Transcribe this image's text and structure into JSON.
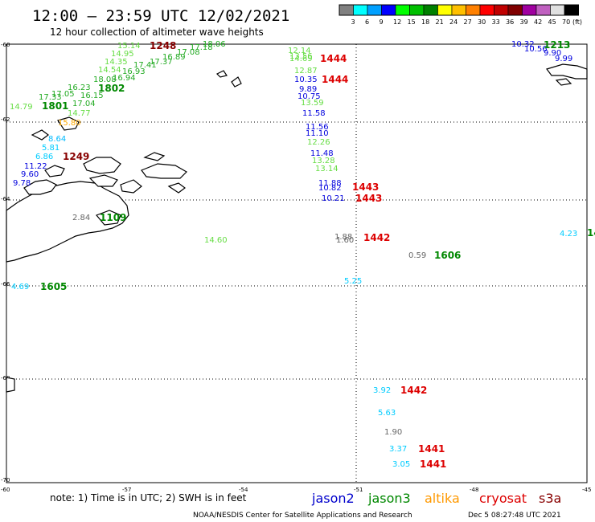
{
  "header": {
    "title": "12:00 – 23:59 UTC 12/02/2021",
    "subtitle": "12 hour collection of altimeter wave heights"
  },
  "legend": {
    "unit": "(ft)",
    "colors": [
      "#808080",
      "#00ffff",
      "#00a0ff",
      "#0000ff",
      "#00ff00",
      "#00c000",
      "#008000",
      "#ffff00",
      "#ffc000",
      "#ff8000",
      "#ff0000",
      "#c00000",
      "#800000",
      "#a000a0",
      "#c060c0",
      "#e0e0e0",
      "#000000"
    ],
    "values": [
      "3",
      "6",
      "9",
      "12",
      "15",
      "18",
      "21",
      "24",
      "27",
      "30",
      "33",
      "36",
      "39",
      "42",
      "45",
      "70"
    ]
  },
  "axes": {
    "lon_labels": [
      "-60",
      "-57",
      "-54",
      "-51",
      "-48",
      "-45"
    ],
    "lat_labels": [
      "-60",
      "-62",
      "-64",
      "-66",
      "-68",
      "-70"
    ]
  },
  "observations": [
    {
      "text": "15.14",
      "color": "#66dd44"
    },
    {
      "text": "14.95",
      "color": "#66dd44"
    },
    {
      "text": "14.35",
      "color": "#66dd44"
    },
    {
      "text": "14.54",
      "color": "#66dd44"
    },
    {
      "text": "16.94",
      "color": "#22aa22"
    },
    {
      "text": "16.93",
      "color": "#22aa22"
    },
    {
      "text": "17.41",
      "color": "#22aa22"
    },
    {
      "text": "17.37",
      "color": "#22aa22"
    },
    {
      "text": "16.89",
      "color": "#22aa22"
    },
    {
      "text": "17.08",
      "color": "#22aa22"
    },
    {
      "text": "17.18",
      "color": "#22aa22"
    },
    {
      "text": "18.06",
      "color": "#22aa22"
    },
    {
      "text": "18.08",
      "color": "#22aa22"
    },
    {
      "text": "17.33",
      "color": "#22aa22"
    },
    {
      "text": "16.15",
      "color": "#22aa22"
    },
    {
      "text": "17.04",
      "color": "#22aa22"
    },
    {
      "text": "17.05",
      "color": "#22aa22"
    },
    {
      "text": "16.23",
      "color": "#22aa22"
    },
    {
      "text": "14.79",
      "color": "#66dd44"
    },
    {
      "text": "14.77",
      "color": "#66dd44"
    },
    {
      "text": "15.80",
      "color": "#ffaa00"
    },
    {
      "text": "8.64",
      "color": "#00bbff"
    },
    {
      "text": "5.81",
      "color": "#00ccff"
    },
    {
      "text": "6.86",
      "color": "#00ccff"
    },
    {
      "text": "11.22",
      "color": "#0000dd"
    },
    {
      "text": "9.60",
      "color": "#0000dd"
    },
    {
      "text": "9.78",
      "color": "#0000dd"
    },
    {
      "text": "12.14",
      "color": "#66dd44"
    },
    {
      "text": "13.56",
      "color": "#66dd44"
    },
    {
      "text": "14.69",
      "color": "#66dd44"
    },
    {
      "text": "12.87",
      "color": "#66dd44"
    },
    {
      "text": "10.35",
      "color": "#0000dd"
    },
    {
      "text": "9.89",
      "color": "#0000dd"
    },
    {
      "text": "10.75",
      "color": "#0000dd"
    },
    {
      "text": "13.59",
      "color": "#66dd44"
    },
    {
      "text": "11.58",
      "color": "#0000dd"
    },
    {
      "text": "11.56",
      "color": "#0000dd"
    },
    {
      "text": "11.10",
      "color": "#0000dd"
    },
    {
      "text": "12.26",
      "color": "#66dd44"
    },
    {
      "text": "11.48",
      "color": "#0000dd"
    },
    {
      "text": "13.28",
      "color": "#66dd44"
    },
    {
      "text": "13.14",
      "color": "#66dd44"
    },
    {
      "text": "11.88",
      "color": "#0000dd"
    },
    {
      "text": "10.82",
      "color": "#0000dd"
    },
    {
      "text": "10.21",
      "color": "#0000dd"
    },
    {
      "text": "1.88",
      "color": "#666666"
    },
    {
      "text": "1.60",
      "color": "#666666"
    },
    {
      "text": "0.59",
      "color": "#666666"
    },
    {
      "text": "5.25",
      "color": "#00ccff"
    },
    {
      "text": "14.60",
      "color": "#66dd44"
    },
    {
      "text": "2.84",
      "color": "#666666"
    },
    {
      "text": "4.69",
      "color": "#00ccff"
    },
    {
      "text": "10.32",
      "color": "#0000dd"
    },
    {
      "text": "10.56",
      "color": "#0000dd"
    },
    {
      "text": "9.90",
      "color": "#0000dd"
    },
    {
      "text": "9.99",
      "color": "#0000dd"
    },
    {
      "text": "4.23",
      "color": "#00ccff"
    },
    {
      "text": "3.92",
      "color": "#00ccff"
    },
    {
      "text": "5.63",
      "color": "#00ccff"
    },
    {
      "text": "1.90",
      "color": "#666666"
    },
    {
      "text": "3.37",
      "color": "#00ccff"
    },
    {
      "text": "3.05",
      "color": "#00ccff"
    }
  ],
  "passes": [
    {
      "text": "1248",
      "color": "#880000"
    },
    {
      "text": "1802",
      "color": "#008800"
    },
    {
      "text": "1801",
      "color": "#008800"
    },
    {
      "text": "1249",
      "color": "#880000"
    },
    {
      "text": "1444",
      "color": "#dd0000"
    },
    {
      "text": "1444",
      "color": "#dd0000"
    },
    {
      "text": "1443",
      "color": "#dd0000"
    },
    {
      "text": "1443",
      "color": "#dd0000"
    },
    {
      "text": "1442",
      "color": "#dd0000"
    },
    {
      "text": "1606",
      "color": "#008800"
    },
    {
      "text": "1605",
      "color": "#008800"
    },
    {
      "text": "1109",
      "color": "#008800"
    },
    {
      "text": "1213",
      "color": "#008800"
    },
    {
      "text": "1442",
      "color": "#dd0000"
    },
    {
      "text": "1441",
      "color": "#dd0000"
    },
    {
      "text": "1441",
      "color": "#dd0000"
    },
    {
      "text": "14",
      "color": "#008800"
    }
  ],
  "footer": {
    "note": "note: 1) Time is in UTC; 2) SWH is in feet",
    "satellites": [
      {
        "name": "jason2",
        "color": "#0000cc"
      },
      {
        "name": "jason3",
        "color": "#008800"
      },
      {
        "name": "altika",
        "color": "#ff9900"
      },
      {
        "name": "cryosat",
        "color": "#dd0000"
      },
      {
        "name": "s3a",
        "color": "#880000"
      }
    ],
    "credit": "NOAA/NESDIS Center for Satellite Applications and Research",
    "timestamp": "Dec  5 08:27:48 UTC 2021"
  }
}
